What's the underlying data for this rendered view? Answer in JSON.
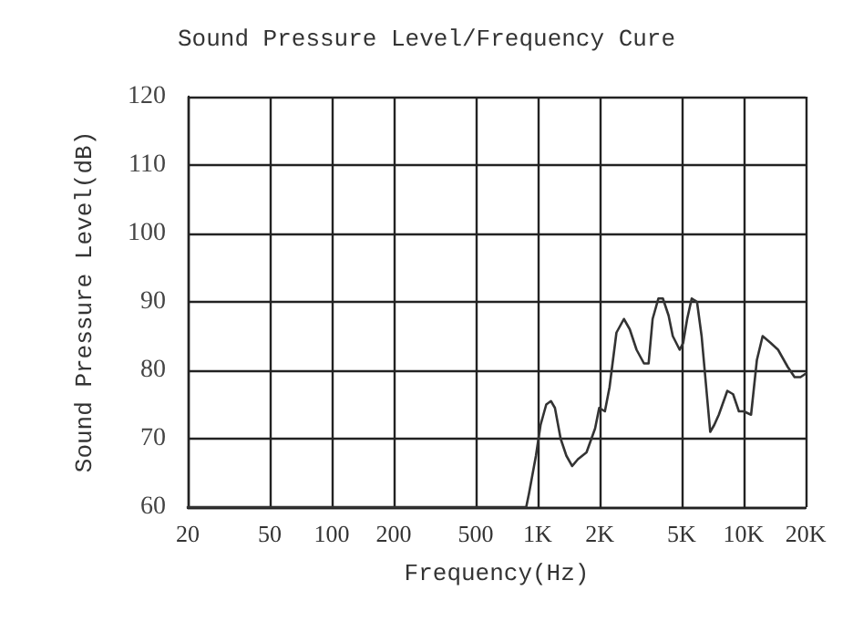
{
  "chart_data": {
    "type": "line",
    "title": "Sound Pressure Level/Frequency Cure",
    "xlabel": "Frequency(Hz)",
    "ylabel": "Sound Pressure Level(dB)",
    "log": "x",
    "xlim": [
      20,
      20000
    ],
    "xticks": [
      20,
      50,
      100,
      200,
      500,
      {
        "value": 1000,
        "label": "1K"
      },
      {
        "value": 2000,
        "label": "2K"
      },
      {
        "value": 5000,
        "label": "5K"
      },
      {
        "value": 10000,
        "label": "10K"
      },
      {
        "value": 20000,
        "label": "20K"
      }
    ],
    "ylim": [
      60,
      120
    ],
    "yticks": [
      60,
      70,
      80,
      90,
      100,
      110,
      120
    ],
    "grid": true,
    "marker": "none",
    "line_style": "solid",
    "series": [
      {
        "color": "#333333",
        "x": [
          20,
          880,
          908,
          981,
          1033,
          1101,
          1160,
          1213,
          1293,
          1379,
          1471,
          1569,
          1727,
          1901,
          1990,
          2121,
          2233,
          2413,
          2623,
          2800,
          3022,
          3283,
          3457,
          3616,
          3857,
          4055,
          4323,
          4530,
          4894,
          5087,
          5320,
          5599,
          5939,
          6253,
          6583,
          6885,
          7200,
          7579,
          8336,
          8892,
          9486,
          10000,
          10870,
          11600,
          12370,
          13530,
          14700,
          16370,
          17680,
          18900,
          20000
        ],
        "values": [
          60,
          60,
          62,
          67.5,
          72,
          75,
          75.5,
          74.5,
          70,
          67.5,
          66,
          67,
          68,
          71.5,
          74.5,
          74,
          77.5,
          85.5,
          87.5,
          86,
          83,
          81,
          81,
          87.5,
          90.5,
          90.5,
          88,
          85,
          83,
          84,
          87.5,
          90.5,
          90,
          85,
          77.5,
          71,
          72,
          73.5,
          77,
          76.5,
          74,
          74,
          73.5,
          81.5,
          85,
          84,
          83,
          80.5,
          79,
          79,
          79.5
        ]
      }
    ]
  }
}
